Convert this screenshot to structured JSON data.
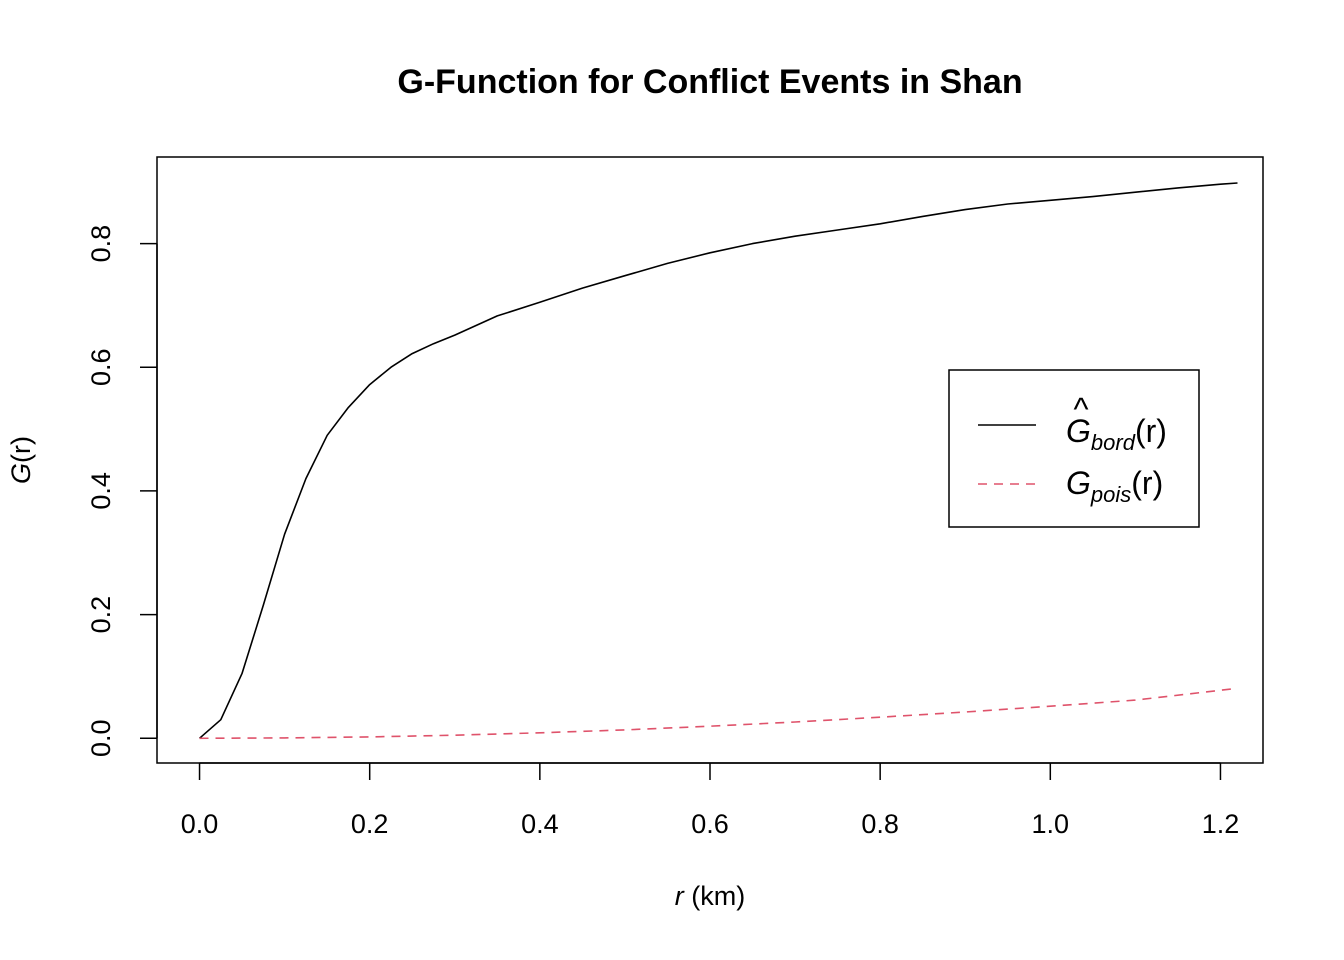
{
  "chart_data": {
    "type": "line",
    "title": "G-Function for Conflict Events in Shan",
    "xlabel": {
      "var": "r",
      "unit": " (km)"
    },
    "ylabel": {
      "var": "G",
      "arg": "(r)"
    },
    "xlim": [
      -0.05,
      1.25
    ],
    "ylim": [
      -0.04,
      0.94
    ],
    "xticks": [
      0.0,
      0.2,
      0.4,
      0.6,
      0.8,
      1.0,
      1.2
    ],
    "xtick_labels": [
      "0.0",
      "0.2",
      "0.4",
      "0.6",
      "0.8",
      "1.0",
      "1.2"
    ],
    "yticks": [
      0.0,
      0.2,
      0.4,
      0.6,
      0.8
    ],
    "ytick_labels": [
      "0.0",
      "0.2",
      "0.4",
      "0.6",
      "0.8"
    ],
    "grid": false,
    "legend_position": "right",
    "series": [
      {
        "name": "Ĝbord(r)",
        "legend": {
          "hat": "^",
          "base": "G",
          "sub": "bord",
          "arg": "(r)"
        },
        "color": "#000000",
        "dash": "solid",
        "x": [
          0.0,
          0.025,
          0.05,
          0.075,
          0.1,
          0.125,
          0.15,
          0.175,
          0.2,
          0.225,
          0.25,
          0.275,
          0.3,
          0.35,
          0.4,
          0.45,
          0.5,
          0.55,
          0.6,
          0.65,
          0.7,
          0.75,
          0.8,
          0.85,
          0.9,
          0.95,
          1.0,
          1.05,
          1.1,
          1.15,
          1.2,
          1.22
        ],
        "y": [
          0.0,
          0.03,
          0.105,
          0.215,
          0.33,
          0.42,
          0.49,
          0.535,
          0.572,
          0.6,
          0.622,
          0.638,
          0.652,
          0.683,
          0.705,
          0.728,
          0.748,
          0.768,
          0.785,
          0.8,
          0.812,
          0.822,
          0.832,
          0.844,
          0.855,
          0.864,
          0.87,
          0.876,
          0.883,
          0.89,
          0.896,
          0.898
        ]
      },
      {
        "name": "Gpois(r)",
        "legend": {
          "hat": "",
          "base": "G",
          "sub": "pois",
          "arg": "(r)"
        },
        "color": "#DF536B",
        "dash": "dashed",
        "x": [
          0.0,
          0.1,
          0.2,
          0.3,
          0.4,
          0.5,
          0.6,
          0.7,
          0.8,
          0.9,
          1.0,
          1.1,
          1.22
        ],
        "y": [
          0.0,
          0.0006,
          0.0022,
          0.005,
          0.0088,
          0.0136,
          0.0195,
          0.0263,
          0.034,
          0.0425,
          0.0518,
          0.0618,
          0.0808
        ]
      }
    ]
  }
}
